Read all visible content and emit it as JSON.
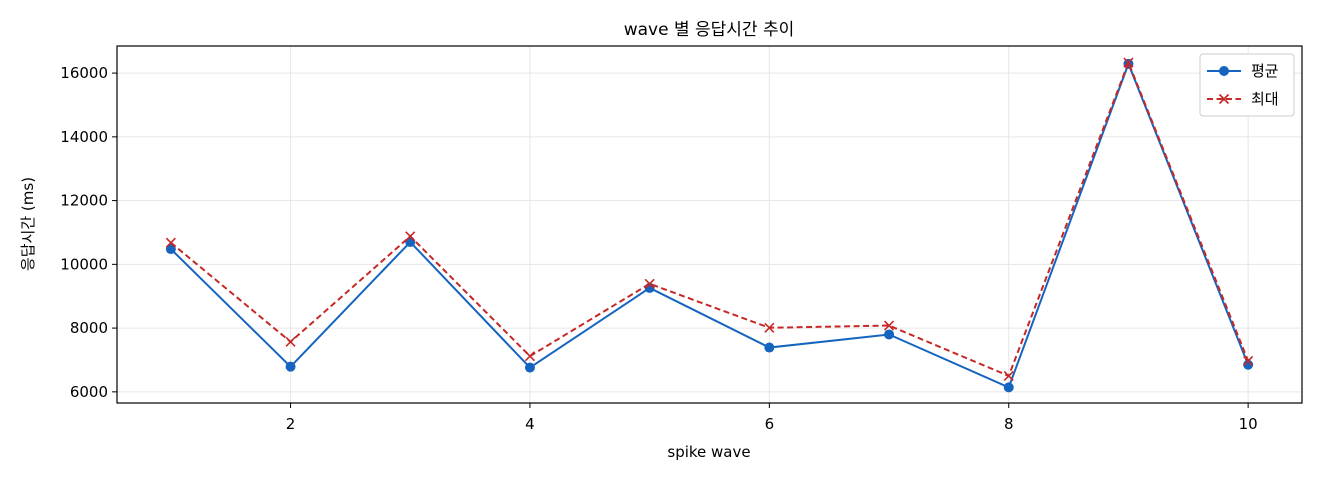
{
  "chart_data": {
    "type": "line",
    "title": "wave 별 응답시간 추이",
    "xlabel": "spike wave",
    "ylabel": "응답시간 (ms)",
    "x": [
      1,
      2,
      3,
      4,
      5,
      6,
      7,
      8,
      9,
      10
    ],
    "xlim": [
      0.55,
      10.45
    ],
    "ylim": [
      5650,
      16850
    ],
    "xticks": [
      2,
      4,
      6,
      8,
      10
    ],
    "yticks": [
      6000,
      8000,
      10000,
      12000,
      14000,
      16000
    ],
    "grid": true,
    "legend_position": "top-right",
    "series": [
      {
        "name": "평균",
        "color": "#1565c0",
        "marker": "circle",
        "line_style": "solid",
        "values": [
          10480,
          6790,
          10700,
          6760,
          9260,
          7390,
          7800,
          6140,
          16290,
          6850
        ]
      },
      {
        "name": "최대",
        "color": "#c62828",
        "marker": "x",
        "line_style": "dashed",
        "values": [
          10680,
          7570,
          10880,
          7120,
          9390,
          8010,
          8080,
          6500,
          16330,
          6970
        ]
      }
    ]
  }
}
